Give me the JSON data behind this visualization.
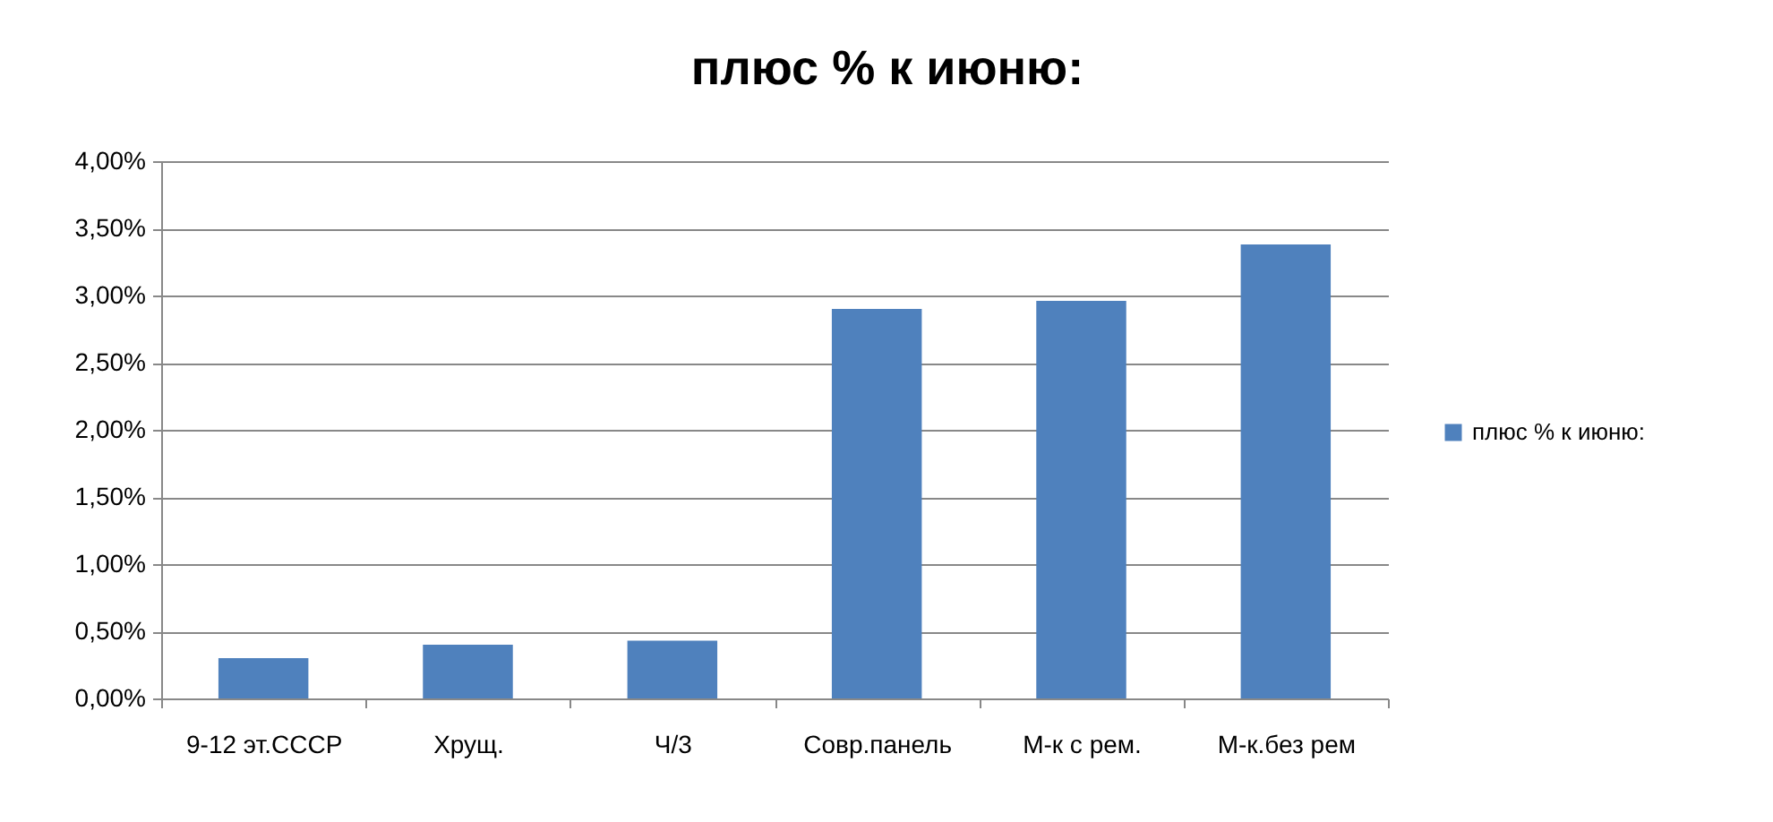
{
  "chart_data": {
    "type": "bar",
    "title": "плюс % к июню:",
    "categories": [
      "9-12 эт.СССР",
      "Хрущ.",
      "Ч/3",
      "Совр.панель",
      "М-к с рем.",
      "М-к.без рем"
    ],
    "series": [
      {
        "name": "плюс % к июню:",
        "color": "#4f81bd",
        "values": [
          0.3,
          0.4,
          0.43,
          2.9,
          2.96,
          3.38
        ]
      }
    ],
    "ylim": [
      0,
      4
    ],
    "yticks": [
      {
        "value": 0,
        "label": "0,00%"
      },
      {
        "value": 0.5,
        "label": "0,50%"
      },
      {
        "value": 1,
        "label": "1,00%"
      },
      {
        "value": 1.5,
        "label": "1,50%"
      },
      {
        "value": 2,
        "label": "2,00%"
      },
      {
        "value": 2.5,
        "label": "2,50%"
      },
      {
        "value": 3,
        "label": "3,00%"
      },
      {
        "value": 3.5,
        "label": "3,50%"
      },
      {
        "value": 4,
        "label": "4,00%"
      }
    ],
    "grid": "y",
    "legend": "right"
  }
}
